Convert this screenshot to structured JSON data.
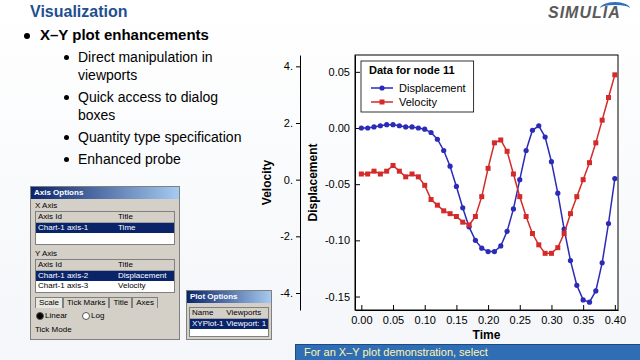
{
  "slide": {
    "title": "Visualization",
    "logo": "SIMULIA",
    "heading": "X–Y plot enhancements",
    "bullets": [
      "Direct manipulation in viewports",
      "Quick access to dialog boxes",
      "Quantity type specification",
      "Enhanced probe"
    ],
    "footer": "For an X–Y plot demonstration, select"
  },
  "dialogs": {
    "axis_options": {
      "title": "Axis Options",
      "x_axis": "X Axis",
      "y_axis": "Y Axis",
      "columns": [
        "Axis Id",
        "Title"
      ],
      "x_rows": [
        [
          "Chart-1 axis-1",
          "Time"
        ]
      ],
      "y_rows": [
        [
          "Chart-1 axis-2",
          "Displacement"
        ],
        [
          "Chart-1 axis-3",
          "Velocity"
        ]
      ],
      "tabs": [
        "Scale",
        "Tick Marks",
        "Title",
        "Axes"
      ],
      "options": [
        "Linear",
        "Log",
        "Tick Mode"
      ]
    },
    "plot_options": {
      "title": "Plot Options",
      "columns": [
        "Name",
        "Viewports"
      ],
      "rows": [
        [
          "XYPlot-1",
          "Viewport: 1"
        ]
      ]
    }
  },
  "chart_data": {
    "type": "line",
    "legend_title": "Data for node 11",
    "x_label": "Time",
    "y_label": "Displacement",
    "y2_label": "Velocity",
    "x": [
      0,
      0.01,
      0.02,
      0.03,
      0.04,
      0.05,
      0.06,
      0.07,
      0.08,
      0.09,
      0.1,
      0.11,
      0.12,
      0.13,
      0.14,
      0.15,
      0.16,
      0.17,
      0.18,
      0.19,
      0.2,
      0.21,
      0.22,
      0.23,
      0.24,
      0.25,
      0.26,
      0.27,
      0.28,
      0.29,
      0.3,
      0.31,
      0.32,
      0.33,
      0.34,
      0.35,
      0.36,
      0.37,
      0.38,
      0.39,
      0.4
    ],
    "xlim": [
      -0.01,
      0.405
    ],
    "xticks": [
      {
        "value": 0,
        "label": "0.00"
      },
      0.05,
      {
        "value": 0.1,
        "label": "0.10"
      },
      0.15,
      {
        "value": 0.2,
        "label": "0.20"
      },
      0.25,
      {
        "value": 0.3,
        "label": "0.30"
      },
      0.35,
      {
        "value": 0.4,
        "label": "0.40"
      }
    ],
    "ylim": [
      -0.162,
      0.065
    ],
    "yticks": [
      0.05,
      {
        "value": 0,
        "label": "0.00"
      },
      -0.05,
      {
        "value": -0.1,
        "label": "-0.10"
      },
      -0.15
    ],
    "y2lim": [
      -4.6,
      4.4
    ],
    "y2ticks": [
      {
        "value": 4,
        "label": "4."
      },
      {
        "value": 2,
        "label": "2."
      },
      {
        "value": 0,
        "label": "0."
      },
      {
        "value": -2,
        "label": "-2."
      },
      {
        "value": -4,
        "label": "-4."
      }
    ],
    "grid": false,
    "legend": "upper left",
    "series": [
      {
        "name": "Displacement",
        "color": "#2b2bb8",
        "marker": "circle",
        "line_style": "solid",
        "values": [
          0,
          0,
          0.001,
          0.002,
          0.003,
          0.003,
          0.002,
          0.001,
          0.001,
          0,
          -0.001,
          -0.004,
          -0.01,
          -0.02,
          -0.034,
          -0.052,
          -0.071,
          -0.088,
          -0.1,
          -0.107,
          -0.11,
          -0.11,
          -0.105,
          -0.092,
          -0.072,
          -0.046,
          -0.02,
          -0.002,
          0.002,
          -0.008,
          -0.03,
          -0.058,
          -0.09,
          -0.118,
          -0.14,
          -0.153,
          -0.155,
          -0.145,
          -0.12,
          -0.085,
          -0.045
        ]
      },
      {
        "name": "Velocity",
        "color": "#d42a2a",
        "marker": "square",
        "line_style": "solid",
        "axis": "y2",
        "values": [
          0.2,
          0.2,
          0.3,
          0.2,
          0.3,
          0.5,
          0.3,
          0.1,
          0.2,
          0.1,
          -0.2,
          -0.7,
          -0.9,
          -1.1,
          -1.2,
          -1.3,
          -1.5,
          -1.6,
          -1.3,
          -0.6,
          0.4,
          1.3,
          1.4,
          1.0,
          0.2,
          -0.6,
          -1.3,
          -1.9,
          -2.3,
          -2.6,
          -2.6,
          -2.4,
          -1.9,
          -1.2,
          -0.6,
          0.0,
          0.6,
          1.3,
          2.1,
          2.9,
          3.7
        ]
      }
    ]
  }
}
